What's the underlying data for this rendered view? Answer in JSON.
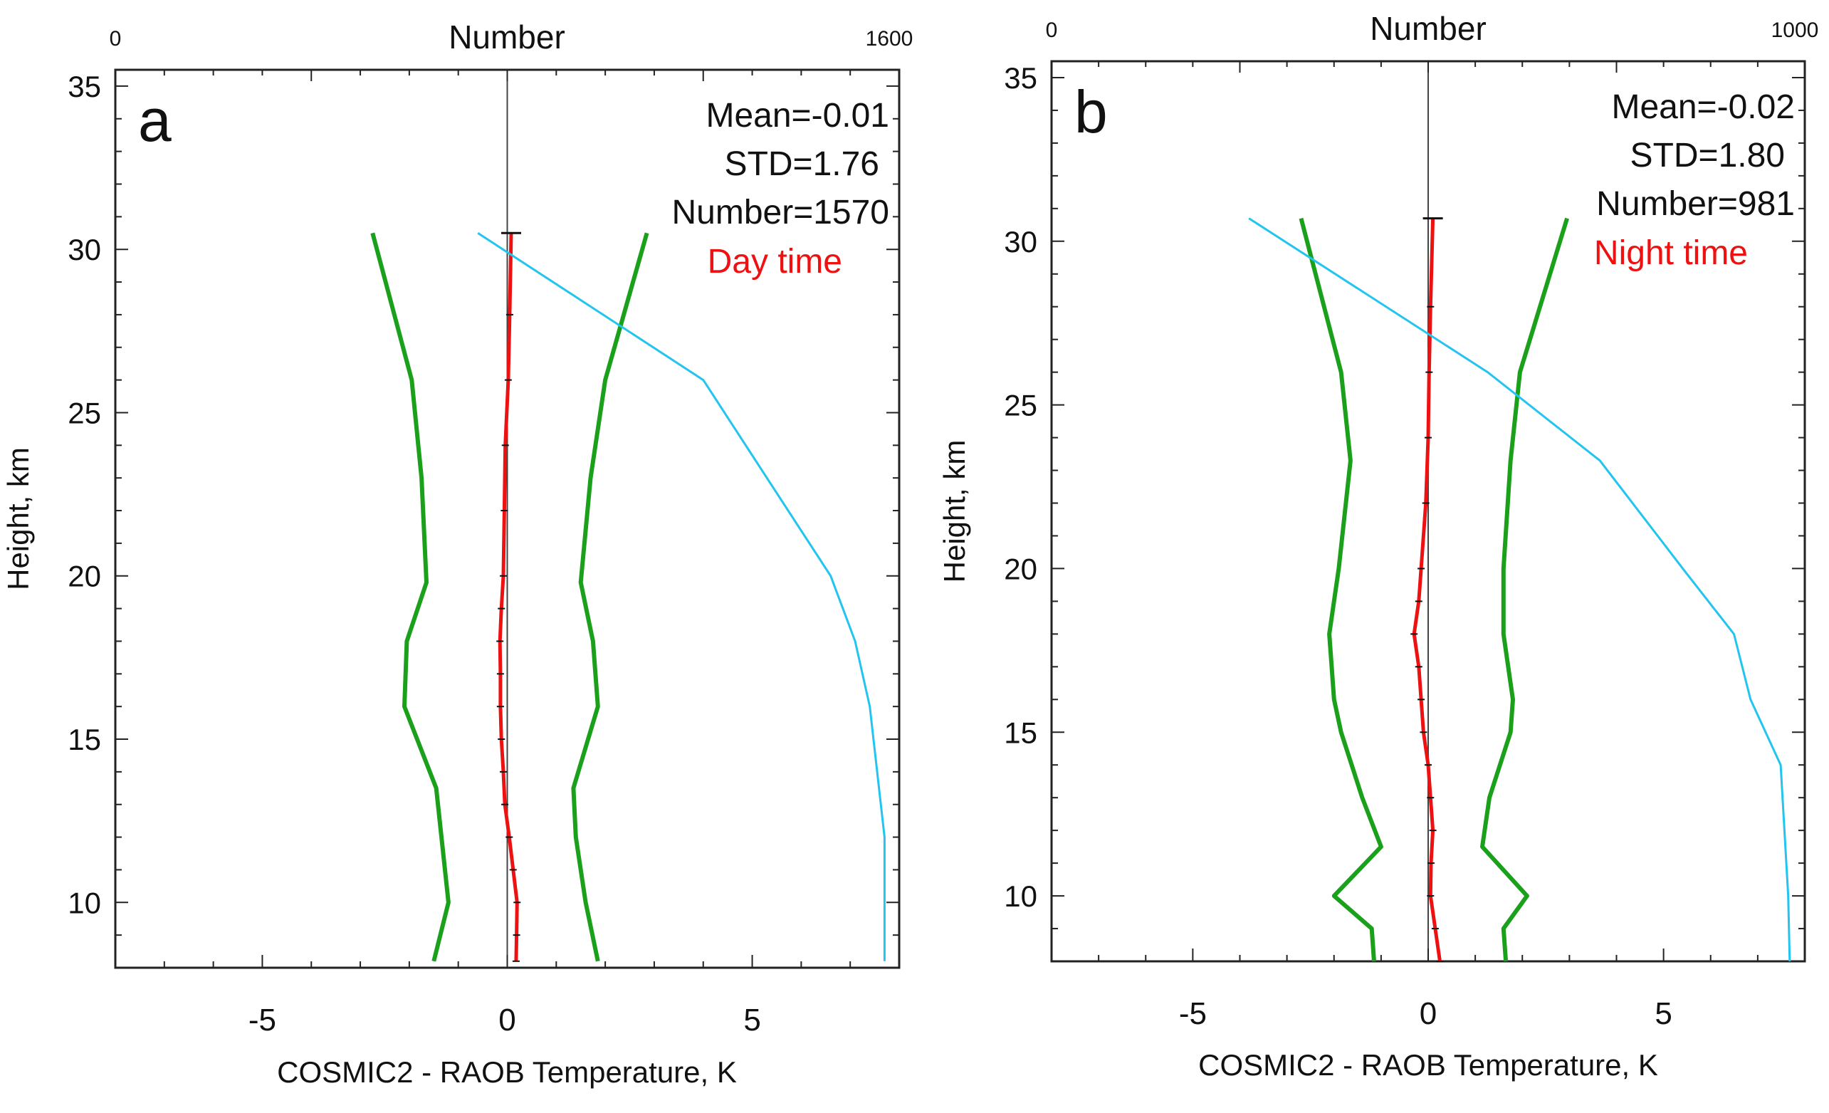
{
  "chart_data": [
    {
      "type": "line",
      "panel_label": "a",
      "xlabel": "COSMIC2 - RAOB Temperature, K",
      "ylabel": "Height, km",
      "top_axis_label": "Number",
      "top_axis_range": [
        0,
        1600
      ],
      "top_axis_tick_labels": [
        "0",
        "1600"
      ],
      "xlim": [
        -8,
        8
      ],
      "ylim": [
        8,
        35.5
      ],
      "xticks": [
        -5,
        0,
        5
      ],
      "xtick_labels": [
        "-5",
        "0",
        "5"
      ],
      "yticks": [
        10,
        15,
        20,
        25,
        30,
        35
      ],
      "ytick_labels": [
        "10",
        "15",
        "20",
        "25",
        "30",
        "35"
      ],
      "grid": false,
      "stats": {
        "mean": "Mean=-0.01",
        "std": "STD=1.76",
        "number": "Number=1570",
        "period": "Day time"
      },
      "colors": {
        "mean": "#ee1111",
        "std": "#1aa01a",
        "number": "#22c4f0",
        "period_text": "#ee1111"
      },
      "series": [
        {
          "role": "mean",
          "y": [
            8.2,
            9.0,
            10.0,
            11.0,
            12.0,
            13.0,
            14.0,
            15.0,
            16.0,
            17.0,
            18.0,
            19.0,
            20.0,
            22.0,
            24.0,
            26.0,
            28.0,
            30.5
          ],
          "x": [
            0.18,
            0.19,
            0.2,
            0.12,
            0.04,
            -0.05,
            -0.08,
            -0.12,
            -0.14,
            -0.14,
            -0.15,
            -0.12,
            -0.08,
            -0.06,
            -0.04,
            0.02,
            0.05,
            0.08
          ]
        },
        {
          "role": "lower",
          "y": [
            8.2,
            10.0,
            13.5,
            16.0,
            18.0,
            19.8,
            23.0,
            26.0,
            30.5
          ],
          "x": [
            -1.5,
            -1.2,
            -1.45,
            -2.1,
            -2.05,
            -1.65,
            -1.75,
            -1.95,
            -2.75
          ]
        },
        {
          "role": "upper",
          "y": [
            8.2,
            10.0,
            12.0,
            13.5,
            16.0,
            18.0,
            19.8,
            23.0,
            26.0,
            30.5
          ],
          "x": [
            1.85,
            1.6,
            1.4,
            1.35,
            1.85,
            1.75,
            1.5,
            1.7,
            2.0,
            2.85
          ]
        },
        {
          "role": "number",
          "y": [
            8.2,
            12.0,
            16.0,
            18.0,
            20.0,
            23.0,
            26.0,
            30.5
          ],
          "n": [
            1570,
            1570,
            1540,
            1510,
            1460,
            1330,
            1200,
            740
          ]
        }
      ]
    },
    {
      "type": "line",
      "panel_label": "b",
      "xlabel": "COSMIC2 - RAOB Temperature, K",
      "ylabel": "Height, km",
      "top_axis_label": "Number",
      "top_axis_range": [
        0,
        1000
      ],
      "top_axis_tick_labels": [
        "0",
        "1000"
      ],
      "xlim": [
        -8,
        8
      ],
      "ylim": [
        8,
        35.5
      ],
      "xticks": [
        -5,
        0,
        5
      ],
      "xtick_labels": [
        "-5",
        "0",
        "5"
      ],
      "yticks": [
        10,
        15,
        20,
        25,
        30,
        35
      ],
      "ytick_labels": [
        "10",
        "15",
        "20",
        "25",
        "30",
        "35"
      ],
      "grid": false,
      "stats": {
        "mean": "Mean=-0.02",
        "std": "STD=1.80",
        "number": "Number=981",
        "period": "Night time"
      },
      "colors": {
        "mean": "#ee1111",
        "std": "#1aa01a",
        "number": "#22c4f0",
        "period_text": "#ee1111"
      },
      "series": [
        {
          "role": "mean",
          "y": [
            8.0,
            9.0,
            10.0,
            11.0,
            12.0,
            13.0,
            14.0,
            15.0,
            16.0,
            17.0,
            18.0,
            19.0,
            20.0,
            22.0,
            24.0,
            26.0,
            28.0,
            30.7
          ],
          "x": [
            0.25,
            0.15,
            0.05,
            0.06,
            0.1,
            0.05,
            0.0,
            -0.1,
            -0.15,
            -0.2,
            -0.3,
            -0.2,
            -0.15,
            -0.05,
            0.0,
            0.02,
            0.05,
            0.1
          ]
        },
        {
          "role": "lower",
          "y": [
            8.0,
            9.0,
            10.0,
            11.5,
            13.0,
            15.0,
            16.0,
            18.0,
            20.0,
            23.3,
            26.0,
            30.7
          ],
          "x": [
            -1.15,
            -1.2,
            -2.0,
            -1.0,
            -1.4,
            -1.85,
            -2.0,
            -2.1,
            -1.9,
            -1.65,
            -1.85,
            -2.7
          ]
        },
        {
          "role": "upper",
          "y": [
            8.0,
            9.0,
            10.0,
            11.5,
            13.0,
            15.0,
            16.0,
            18.0,
            20.0,
            23.3,
            26.0,
            30.7
          ],
          "x": [
            1.65,
            1.6,
            2.1,
            1.15,
            1.3,
            1.75,
            1.8,
            1.6,
            1.6,
            1.75,
            1.95,
            2.95
          ]
        },
        {
          "role": "number",
          "y": [
            8.0,
            10.0,
            14.0,
            16.0,
            18.0,
            20.0,
            23.3,
            26.0,
            30.7
          ],
          "n": [
            980,
            978,
            968,
            928,
            906,
            838,
            728,
            579,
            262
          ]
        }
      ]
    }
  ]
}
